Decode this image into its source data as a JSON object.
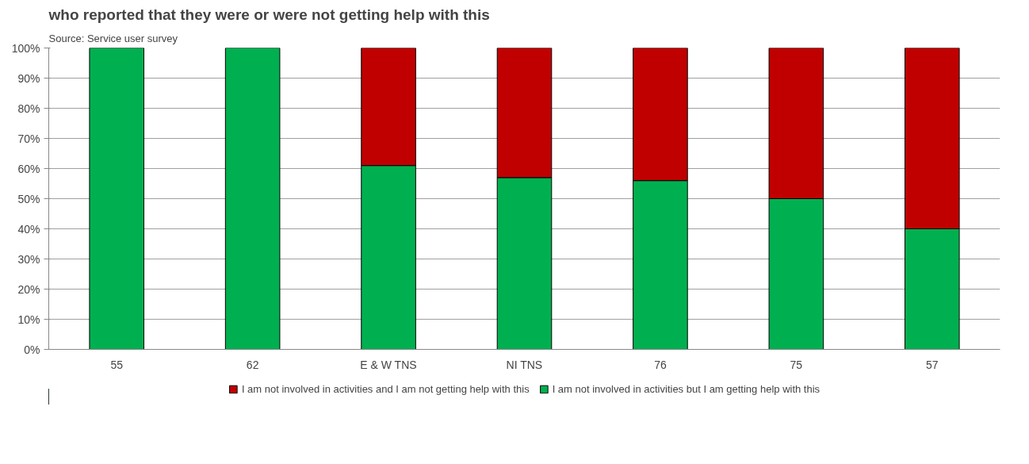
{
  "chart_data": {
    "type": "bar",
    "stacked": true,
    "title": "who reported that they were or were not getting help with this",
    "annotations": [
      "Source: Service user survey"
    ],
    "categories": [
      "55",
      "62",
      "E & W TNS",
      "NI TNS",
      "76",
      "75",
      "57"
    ],
    "series": [
      {
        "name": "I am not involved in activities but I am getting help with this",
        "color": "#00b050",
        "values": [
          100,
          100,
          61,
          57,
          56,
          50,
          40
        ]
      },
      {
        "name": "I am not involved in activities and I am not getting help with this",
        "color": "#c00000",
        "values": [
          0,
          0,
          39,
          43,
          44,
          50,
          60
        ]
      }
    ],
    "ylim": [
      0,
      100
    ],
    "yticks": [
      {
        "value": 0,
        "label": "0%"
      },
      {
        "value": 10,
        "label": "10%"
      },
      {
        "value": 20,
        "label": "20%"
      },
      {
        "value": 30,
        "label": "30%"
      },
      {
        "value": 40,
        "label": "40%"
      },
      {
        "value": 50,
        "label": "50%"
      },
      {
        "value": 60,
        "label": "60%"
      },
      {
        "value": 70,
        "label": "70%"
      },
      {
        "value": 80,
        "label": "80%"
      },
      {
        "value": 90,
        "label": "90%"
      },
      {
        "value": 100,
        "label": "100%"
      }
    ],
    "grid": "y",
    "legend": "bottom"
  }
}
